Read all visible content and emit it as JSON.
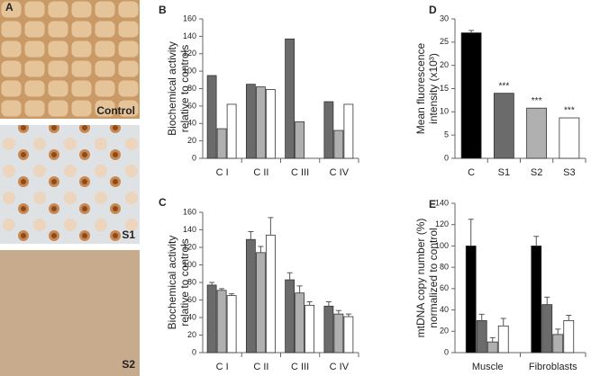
{
  "images": {
    "panel": "A",
    "labels": [
      "Control",
      "S1",
      "S2"
    ]
  },
  "chart_data": [
    {
      "type": "bar",
      "panel": "B",
      "ylabel": [
        "Biochemical activity",
        "relative to controls"
      ],
      "categories": [
        "C I",
        "C II",
        "C III",
        "C IV"
      ],
      "series": [
        {
          "color": "#6b6b6b",
          "values": [
            95,
            85,
            137,
            65
          ]
        },
        {
          "color": "#b0b0b0",
          "values": [
            34,
            82,
            42,
            32
          ]
        },
        {
          "color": "#ffffff",
          "values": [
            62,
            79,
            null,
            62
          ]
        }
      ],
      "ylim": [
        0,
        160
      ],
      "yticks": [
        0,
        20,
        40,
        60,
        80,
        100,
        120,
        140,
        160
      ]
    },
    {
      "type": "bar",
      "panel": "C",
      "ylabel": [
        "Biochemical activity",
        "relative to controls"
      ],
      "categories": [
        "C I",
        "C II",
        "C III",
        "C IV"
      ],
      "series": [
        {
          "color": "#6b6b6b",
          "values": [
            77,
            129,
            83,
            53
          ],
          "errors": [
            3,
            9,
            8,
            5
          ]
        },
        {
          "color": "#b0b0b0",
          "values": [
            71,
            114,
            68,
            44
          ],
          "errors": [
            2,
            7,
            8,
            4
          ]
        },
        {
          "color": "#ffffff",
          "values": [
            65,
            134,
            54,
            41
          ],
          "errors": [
            2,
            20,
            4,
            3
          ]
        }
      ],
      "ylim": [
        0,
        160
      ],
      "yticks": [
        0,
        20,
        40,
        60,
        80,
        100,
        120,
        140,
        160
      ]
    },
    {
      "type": "bar",
      "panel": "D",
      "ylabel": [
        "Mean fluorescence",
        "intensity (x10³)"
      ],
      "categories": [
        "C",
        "S1",
        "S2",
        "S3"
      ],
      "series": [
        {
          "colors": [
            "#000000",
            "#6b6b6b",
            "#b0b0b0",
            "#ffffff"
          ],
          "values": [
            27,
            14,
            10.8,
            8.7
          ],
          "errors": [
            0.5,
            null,
            null,
            null
          ],
          "annotations": [
            null,
            "***",
            "***",
            "***"
          ]
        }
      ],
      "ylim": [
        0,
        30
      ],
      "yticks": [
        0,
        5,
        10,
        15,
        20,
        25,
        30
      ]
    },
    {
      "type": "bar",
      "panel": "E",
      "ylabel": [
        "mtDNA copy number (%)",
        "normalized to control"
      ],
      "categories": [
        "Muscle",
        "Fibroblasts"
      ],
      "series": [
        {
          "color": "#000000",
          "values": [
            100,
            100
          ],
          "errors": [
            25,
            9
          ]
        },
        {
          "color": "#6b6b6b",
          "values": [
            30,
            45
          ],
          "errors": [
            6,
            7
          ]
        },
        {
          "color": "#b0b0b0",
          "values": [
            10,
            17
          ],
          "errors": [
            4,
            5
          ]
        },
        {
          "color": "#ffffff",
          "values": [
            25,
            30
          ],
          "errors": [
            7,
            5
          ]
        }
      ],
      "ylim": [
        0,
        140
      ],
      "yticks": [
        0,
        20,
        40,
        60,
        80,
        100,
        120,
        140
      ]
    }
  ]
}
